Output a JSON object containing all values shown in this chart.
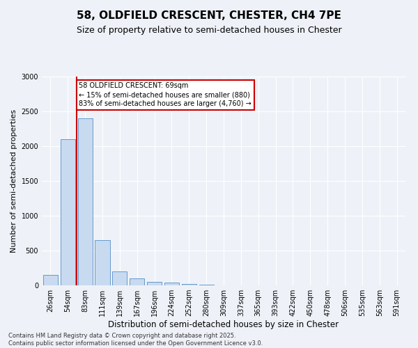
{
  "title1": "58, OLDFIELD CRESCENT, CHESTER, CH4 7PE",
  "title2": "Size of property relative to semi-detached houses in Chester",
  "xlabel": "Distribution of semi-detached houses by size in Chester",
  "ylabel": "Number of semi-detached properties",
  "categories": [
    "26sqm",
    "54sqm",
    "83sqm",
    "111sqm",
    "139sqm",
    "167sqm",
    "196sqm",
    "224sqm",
    "252sqm",
    "280sqm",
    "309sqm",
    "337sqm",
    "365sqm",
    "393sqm",
    "422sqm",
    "450sqm",
    "478sqm",
    "506sqm",
    "535sqm",
    "563sqm",
    "591sqm"
  ],
  "values": [
    150,
    2100,
    2400,
    650,
    200,
    100,
    55,
    40,
    25,
    10,
    5,
    2,
    1,
    0,
    0,
    0,
    0,
    0,
    0,
    0,
    0
  ],
  "bar_color": "#c8daf0",
  "bar_edge_color": "#6699cc",
  "vline_color": "#cc0000",
  "annotation_text": "58 OLDFIELD CRESCENT: 69sqm\n← 15% of semi-detached houses are smaller (880)\n83% of semi-detached houses are larger (4,760) →",
  "annotation_box_color": "#cc0000",
  "ylim": [
    0,
    3000
  ],
  "yticks": [
    0,
    500,
    1000,
    1500,
    2000,
    2500,
    3000
  ],
  "background_color": "#eef2f8",
  "footer1": "Contains HM Land Registry data © Crown copyright and database right 2025.",
  "footer2": "Contains public sector information licensed under the Open Government Licence v3.0.",
  "title1_fontsize": 11,
  "title2_fontsize": 9,
  "xlabel_fontsize": 8.5,
  "ylabel_fontsize": 8,
  "tick_fontsize": 7,
  "footer_fontsize": 6,
  "annot_fontsize": 7
}
